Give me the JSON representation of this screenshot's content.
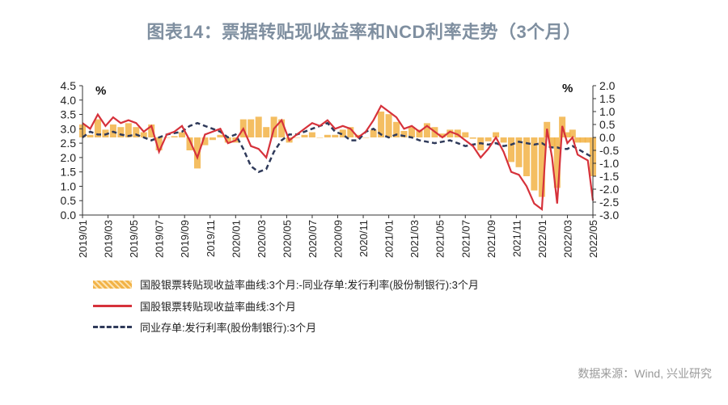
{
  "title": "图表14：票据转贴现收益率和NCD利率走势（3个月）",
  "source": "数据来源：Wind, 兴业研究",
  "legend": [
    {
      "label": "国股银票转贴现收益率曲线:3个月:-同业存单:发行利率(股份制银行):3个月",
      "color": "#f2b347"
    },
    {
      "label": "国股银票转贴现收益率曲线:3个月",
      "color": "#d6323b"
    },
    {
      "label": "同业存单:发行利率(股份制银行):3个月",
      "color": "#2f3a5a"
    }
  ],
  "chart_data": {
    "type": "line",
    "title": "图表14：票据转贴现收益率和NCD利率走势（3个月）",
    "left_axis": {
      "unit": "%",
      "ylim": [
        0.0,
        4.5
      ],
      "ticks": [
        "0.0",
        "0.5",
        "1.0",
        "1.5",
        "2.0",
        "2.5",
        "3.0",
        "3.5",
        "4.0",
        "4.5"
      ]
    },
    "right_axis": {
      "unit": "%",
      "ylim": [
        -3.0,
        2.0
      ],
      "ticks": [
        "-3.0",
        "-2.5",
        "-2.0",
        "-1.5",
        "-1.0",
        "-0.5",
        "0.0",
        "0.5",
        "1.0",
        "1.5",
        "2.0"
      ]
    },
    "x_ticks": [
      "2019/01",
      "2019/03",
      "2019/05",
      "2019/07",
      "2019/09",
      "2019/11",
      "2020/01",
      "2020/03",
      "2020/05",
      "2020/07",
      "2020/09",
      "2020/11",
      "2021/01",
      "2021/03",
      "2021/05",
      "2021/07",
      "2021/09",
      "2021/11",
      "2022/01",
      "2022/03",
      "2022/05"
    ],
    "series": [
      {
        "name": "国股银票转贴现收益率曲线:3个月",
        "axis": "left",
        "x": [
          0,
          0.3,
          0.6,
          0.9,
          1.2,
          1.5,
          1.8,
          2.1,
          2.4,
          2.7,
          3.0,
          3.3,
          3.6,
          3.9,
          4.2,
          4.5,
          4.8,
          5.1,
          5.4,
          5.7,
          6.0,
          6.3,
          6.6,
          6.9,
          7.2,
          7.5,
          7.8,
          8.1,
          8.4,
          8.7,
          9.0,
          9.3,
          9.6,
          9.9,
          10.2,
          10.5,
          10.8,
          11.1,
          11.4,
          11.7,
          12.0,
          12.3,
          12.6,
          12.9,
          13.2,
          13.5,
          13.8,
          14.1,
          14.4,
          14.7,
          15.0,
          15.3,
          15.6,
          15.9,
          16.2,
          16.5,
          16.8,
          17.1,
          17.4,
          17.7,
          18.0,
          18.2,
          18.4,
          18.6,
          18.8,
          19.0,
          19.2,
          19.4,
          19.6,
          19.8,
          20.0
        ],
        "values": [
          3.2,
          3.0,
          3.5,
          3.1,
          3.4,
          3.2,
          3.3,
          3.2,
          2.9,
          3.1,
          2.2,
          2.8,
          2.9,
          3.1,
          2.6,
          2.0,
          2.8,
          2.9,
          3.0,
          2.5,
          2.6,
          3.0,
          2.4,
          2.3,
          2.0,
          3.0,
          3.3,
          2.6,
          2.8,
          3.0,
          3.2,
          3.1,
          3.3,
          3.0,
          3.1,
          3.0,
          2.7,
          2.9,
          3.3,
          3.8,
          3.6,
          3.4,
          3.0,
          3.1,
          2.9,
          3.1,
          2.9,
          2.7,
          2.9,
          2.8,
          2.6,
          2.4,
          2.0,
          2.3,
          2.7,
          2.2,
          1.5,
          1.4,
          1.0,
          0.4,
          0.2,
          3.0,
          2.0,
          0.4,
          3.1,
          2.5,
          2.7,
          2.1,
          2.0,
          1.9,
          0.5
        ]
      },
      {
        "name": "同业存单:发行利率(股份制银行):3个月",
        "axis": "left",
        "x": [
          0,
          0.3,
          0.6,
          0.9,
          1.2,
          1.5,
          1.8,
          2.1,
          2.4,
          2.7,
          3.0,
          3.3,
          3.6,
          3.9,
          4.2,
          4.5,
          4.8,
          5.1,
          5.4,
          5.7,
          6.0,
          6.3,
          6.6,
          6.9,
          7.2,
          7.5,
          7.8,
          8.1,
          8.4,
          8.7,
          9.0,
          9.3,
          9.6,
          9.9,
          10.2,
          10.5,
          10.8,
          11.1,
          11.4,
          11.7,
          12.0,
          12.3,
          12.6,
          12.9,
          13.2,
          13.5,
          13.8,
          14.1,
          14.4,
          14.7,
          15.0,
          15.3,
          15.6,
          15.9,
          16.2,
          16.5,
          16.8,
          17.1,
          17.4,
          17.7,
          18.0,
          18.2,
          18.4,
          18.6,
          18.8,
          19.0,
          19.2,
          19.4,
          19.6,
          19.8,
          20.0
        ],
        "values": [
          2.7,
          2.9,
          2.8,
          2.8,
          2.9,
          2.8,
          2.75,
          2.8,
          2.7,
          2.6,
          2.7,
          2.8,
          2.85,
          2.9,
          3.1,
          3.2,
          3.1,
          3.0,
          2.9,
          2.7,
          2.8,
          2.3,
          1.7,
          1.5,
          1.6,
          2.2,
          2.6,
          2.8,
          2.8,
          2.9,
          3.0,
          3.1,
          3.2,
          2.9,
          2.8,
          2.6,
          2.6,
          2.9,
          3.0,
          2.8,
          2.7,
          2.8,
          2.75,
          2.7,
          2.6,
          2.55,
          2.5,
          2.55,
          2.6,
          2.5,
          2.4,
          2.45,
          2.5,
          2.45,
          2.5,
          2.4,
          2.45,
          2.55,
          2.5,
          2.45,
          2.5,
          2.4,
          2.35,
          2.35,
          2.3,
          2.3,
          2.4,
          2.3,
          2.2,
          2.1,
          2.0
        ]
      },
      {
        "name": "国股银票转贴现收益率曲线:3个月:-同业存单:发行利率(股份制银行):3个月",
        "axis": "right",
        "type": "bar",
        "x": [
          0,
          0.3,
          0.6,
          0.9,
          1.2,
          1.5,
          1.8,
          2.1,
          2.4,
          2.7,
          3.0,
          3.3,
          3.6,
          3.9,
          4.2,
          4.5,
          4.8,
          5.1,
          5.4,
          5.7,
          6.0,
          6.3,
          6.6,
          6.9,
          7.2,
          7.5,
          7.8,
          8.1,
          8.4,
          8.7,
          9.0,
          9.3,
          9.6,
          9.9,
          10.2,
          10.5,
          10.8,
          11.1,
          11.4,
          11.7,
          12.0,
          12.3,
          12.6,
          12.9,
          13.2,
          13.5,
          13.8,
          14.1,
          14.4,
          14.7,
          15.0,
          15.3,
          15.6,
          15.9,
          16.2,
          16.5,
          16.8,
          17.1,
          17.4,
          17.7,
          18.0,
          18.2,
          18.4,
          18.6,
          18.8,
          19.0,
          19.2,
          19.4,
          19.6,
          19.8,
          20.0
        ],
        "values": [
          0.5,
          0.1,
          0.7,
          0.3,
          0.5,
          0.4,
          0.55,
          0.4,
          0.2,
          0.5,
          -0.5,
          0.0,
          0.05,
          0.2,
          -0.5,
          -1.2,
          -0.3,
          -0.1,
          0.1,
          -0.2,
          -0.2,
          0.7,
          0.7,
          0.8,
          0.4,
          0.8,
          0.7,
          -0.2,
          0.0,
          0.1,
          0.2,
          0.0,
          0.1,
          0.1,
          0.3,
          0.4,
          0.1,
          0.0,
          0.3,
          1.0,
          0.9,
          0.6,
          0.25,
          0.4,
          0.3,
          0.55,
          0.4,
          0.15,
          0.3,
          0.3,
          0.2,
          -0.05,
          -0.5,
          -0.15,
          0.2,
          -0.2,
          -0.95,
          -1.15,
          -1.5,
          -2.05,
          -2.3,
          0.6,
          -0.35,
          -1.95,
          0.8,
          0.2,
          0.3,
          -0.2,
          -0.2,
          -0.2,
          -1.5
        ]
      }
    ]
  }
}
